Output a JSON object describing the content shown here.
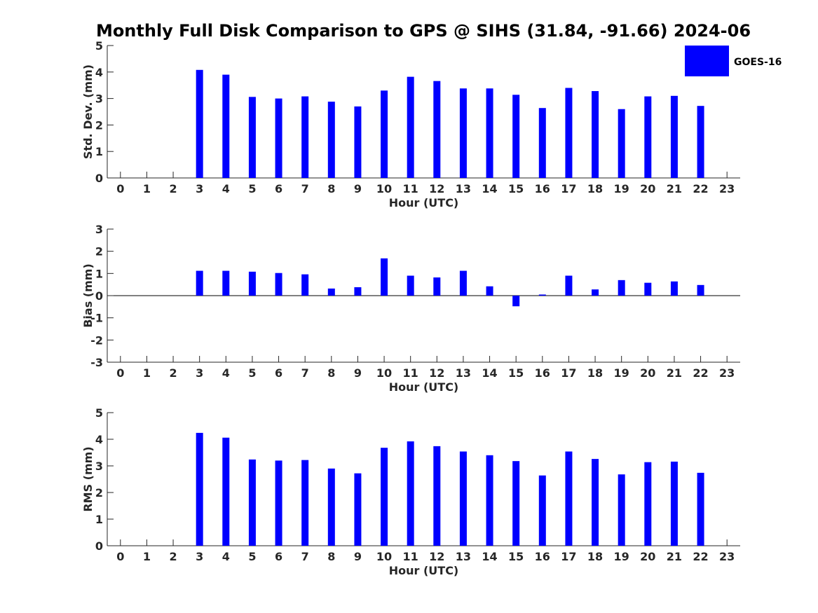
{
  "title": "Monthly Full Disk Comparison to GPS @ SIHS (31.84, -91.66) 2024-06",
  "colors": {
    "bar": "#0000ff",
    "axis": "#262626",
    "background": "#ffffff"
  },
  "legend": {
    "label": "GOES-16",
    "placement": "top-right"
  },
  "chart_data": [
    {
      "type": "bar",
      "title": "Monthly Full Disk Comparison to GPS @ SIHS (31.84, -91.66) 2024-06",
      "xlabel": "Hour (UTC)",
      "ylabel": "Std. Dev. (mm)",
      "ylim": [
        0,
        5
      ],
      "yticks": [
        0,
        1,
        2,
        3,
        4,
        5
      ],
      "categories": [
        0,
        1,
        2,
        3,
        4,
        5,
        6,
        7,
        8,
        9,
        10,
        11,
        12,
        13,
        14,
        15,
        16,
        17,
        18,
        19,
        20,
        21,
        22,
        23
      ],
      "series": [
        {
          "name": "GOES-16",
          "values": [
            null,
            null,
            null,
            4.08,
            3.9,
            3.06,
            3.0,
            3.08,
            2.88,
            2.7,
            3.3,
            3.82,
            3.66,
            3.38,
            3.38,
            3.14,
            2.64,
            3.4,
            3.28,
            2.6,
            3.08,
            3.1,
            2.72,
            null
          ]
        }
      ],
      "grid": false
    },
    {
      "type": "bar",
      "title": "",
      "xlabel": "Hour (UTC)",
      "ylabel": "Bias (mm)",
      "ylim": [
        -3,
        3
      ],
      "yticks": [
        -3,
        -2,
        -1,
        0,
        1,
        2,
        3
      ],
      "categories": [
        0,
        1,
        2,
        3,
        4,
        5,
        6,
        7,
        8,
        9,
        10,
        11,
        12,
        13,
        14,
        15,
        16,
        17,
        18,
        19,
        20,
        21,
        22,
        23
      ],
      "series": [
        {
          "name": "GOES-16",
          "values": [
            null,
            null,
            null,
            1.12,
            1.12,
            1.08,
            1.02,
            0.96,
            0.32,
            0.38,
            1.68,
            0.9,
            0.82,
            1.12,
            0.42,
            -0.48,
            0.05,
            0.9,
            0.28,
            0.7,
            0.58,
            0.64,
            0.48,
            null
          ]
        }
      ],
      "zero_line": true,
      "grid": false
    },
    {
      "type": "bar",
      "title": "",
      "xlabel": "Hour (UTC)",
      "ylabel": "RMS (mm)",
      "ylim": [
        0,
        5
      ],
      "yticks": [
        0,
        1,
        2,
        3,
        4,
        5
      ],
      "categories": [
        0,
        1,
        2,
        3,
        4,
        5,
        6,
        7,
        8,
        9,
        10,
        11,
        12,
        13,
        14,
        15,
        16,
        17,
        18,
        19,
        20,
        21,
        22,
        23
      ],
      "series": [
        {
          "name": "GOES-16",
          "values": [
            null,
            null,
            null,
            4.24,
            4.06,
            3.24,
            3.2,
            3.22,
            2.9,
            2.72,
            3.68,
            3.92,
            3.74,
            3.54,
            3.4,
            3.18,
            2.64,
            3.54,
            3.26,
            2.68,
            3.14,
            3.16,
            2.74,
            null
          ]
        }
      ],
      "grid": false
    }
  ]
}
